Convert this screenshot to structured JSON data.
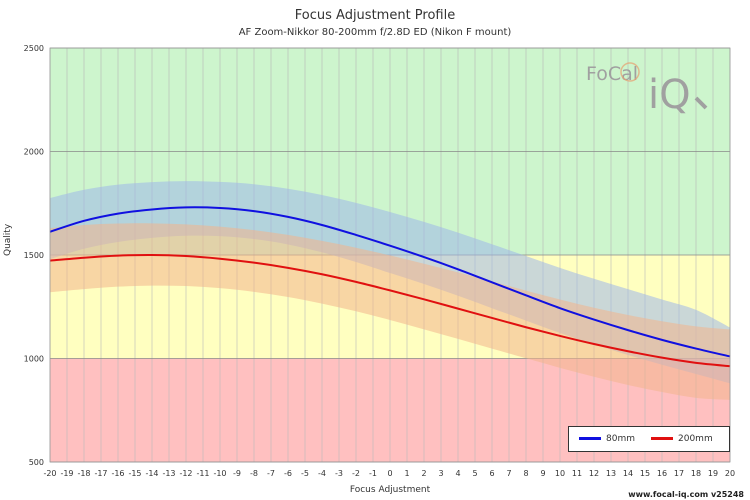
{
  "title": "Focus Adjustment Profile",
  "subtitle": "AF Zoom-Nikkor 80-200mm f/2.8D ED (Nikon F mount)",
  "footer": "www.focal-iq.com  v25248",
  "logo": {
    "text_focal": "FoCal",
    "text_iq": "iQ"
  },
  "chart_data": {
    "type": "line",
    "xlabel": "Focus Adjustment",
    "ylabel": "Quality",
    "xlim": [
      -20,
      20
    ],
    "ylim": [
      500,
      2500
    ],
    "x_ticks": [
      -20,
      -19,
      -18,
      -17,
      -16,
      -15,
      -14,
      -13,
      -12,
      -11,
      -10,
      -9,
      -8,
      -7,
      -6,
      -5,
      -4,
      -3,
      -2,
      -1,
      0,
      1,
      2,
      3,
      4,
      5,
      6,
      7,
      8,
      9,
      10,
      11,
      12,
      13,
      14,
      15,
      16,
      17,
      18,
      19,
      20
    ],
    "y_ticks": [
      500,
      1000,
      1500,
      2000,
      2500
    ],
    "bands": [
      {
        "from": 500,
        "to": 1000,
        "color": "#ffc0c0"
      },
      {
        "from": 1000,
        "to": 1500,
        "color": "#ffffc0"
      },
      {
        "from": 1500,
        "to": 2500,
        "color": "#cdf5cd"
      }
    ],
    "x": [
      -20,
      -18,
      -16,
      -14,
      -12,
      -10,
      -8,
      -6,
      -4,
      -2,
      0,
      2,
      4,
      6,
      8,
      10,
      12,
      14,
      16,
      18,
      20
    ],
    "series": [
      {
        "name": "80mm",
        "color": "#1010e0",
        "band_color": "#9fb7ea",
        "values": [
          1612,
          1665,
          1700,
          1720,
          1730,
          1727,
          1712,
          1684,
          1645,
          1597,
          1545,
          1490,
          1431,
          1368,
          1305,
          1243,
          1188,
          1137,
          1090,
          1048,
          1010
        ],
        "upper": [
          1775,
          1815,
          1840,
          1852,
          1857,
          1853,
          1842,
          1820,
          1790,
          1752,
          1708,
          1660,
          1608,
          1552,
          1495,
          1438,
          1385,
          1335,
          1285,
          1235,
          1150
        ],
        "lower": [
          1480,
          1530,
          1563,
          1583,
          1593,
          1591,
          1577,
          1551,
          1513,
          1466,
          1413,
          1360,
          1303,
          1243,
          1183,
          1123,
          1068,
          1017,
          970,
          925,
          880
        ]
      },
      {
        "name": "200mm",
        "color": "#e01010",
        "band_color": "#f2b48c",
        "values": [
          1473,
          1487,
          1497,
          1500,
          1495,
          1482,
          1463,
          1438,
          1407,
          1370,
          1329,
          1286,
          1241,
          1196,
          1151,
          1109,
          1070,
          1035,
          1004,
          979,
          963
        ],
        "upper": [
          1630,
          1645,
          1652,
          1653,
          1648,
          1637,
          1620,
          1597,
          1568,
          1535,
          1498,
          1458,
          1416,
          1372,
          1328,
          1285,
          1245,
          1210,
          1180,
          1155,
          1140
        ],
        "lower": [
          1320,
          1335,
          1347,
          1352,
          1350,
          1340,
          1322,
          1297,
          1265,
          1228,
          1186,
          1141,
          1095,
          1048,
          1001,
          955,
          912,
          872,
          838,
          810,
          800
        ]
      }
    ],
    "legend_position": "bottom-right"
  }
}
